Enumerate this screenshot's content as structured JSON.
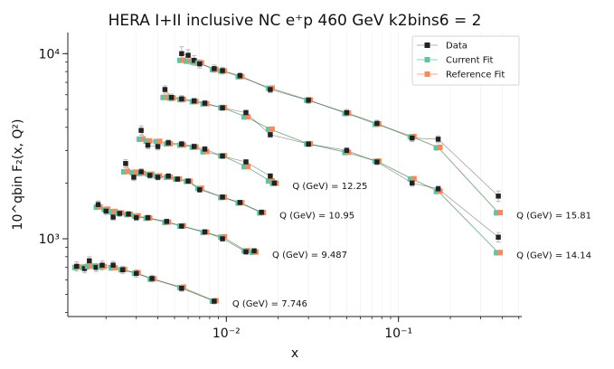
{
  "chart_data": {
    "type": "line",
    "title": "HERA I+II inclusive NC e⁺p 460 GeV k2bins6 = 2",
    "xlabel": "x",
    "ylabel": "10^qbin F₂(x, Q²)",
    "xscale": "log",
    "yscale": "log",
    "xlim": [
      0.0012,
      0.52
    ],
    "ylim": [
      380,
      13000
    ],
    "x_ticks": [
      {
        "value": 0.01,
        "label": "10⁻²"
      },
      {
        "value": 0.1,
        "label": "10⁻¹"
      }
    ],
    "y_ticks": [
      {
        "value": 1000,
        "label": "10³"
      },
      {
        "value": 10000,
        "label": "10⁴"
      }
    ],
    "grid": "vertical-minor-faint",
    "legend_position": "top-right",
    "legend": [
      "Data",
      "Current Fit",
      "Reference Fit"
    ],
    "colors": {
      "data": "#222222",
      "current": "#5fc4a4",
      "reference": "#f28b60"
    },
    "bins": [
      {
        "label": "Q (GeV) = 7.746",
        "points": [
          {
            "x": 0.00135,
            "data": 710,
            "err": 40,
            "current": 700,
            "reference": 705
          },
          {
            "x": 0.0015,
            "data": 690,
            "err": 35,
            "current": 700,
            "reference": 705
          },
          {
            "x": 0.0016,
            "data": 760,
            "err": 40,
            "current": 710,
            "reference": 712
          },
          {
            "x": 0.00175,
            "data": 700,
            "err": 35,
            "current": 710,
            "reference": 710
          },
          {
            "x": 0.0019,
            "data": 720,
            "err": 40,
            "current": 705,
            "reference": 708
          },
          {
            "x": 0.0022,
            "data": 720,
            "err": 35,
            "current": 695,
            "reference": 698
          },
          {
            "x": 0.0025,
            "data": 680,
            "err": 30,
            "current": 680,
            "reference": 682
          },
          {
            "x": 0.003,
            "data": 650,
            "err": 30,
            "current": 650,
            "reference": 655
          },
          {
            "x": 0.0037,
            "data": 610,
            "err": 25,
            "current": 605,
            "reference": 608
          },
          {
            "x": 0.0055,
            "data": 540,
            "err": 20,
            "current": 545,
            "reference": 548
          },
          {
            "x": 0.0085,
            "data": 460,
            "err": 15,
            "current": 460,
            "reference": 463
          }
        ]
      },
      {
        "label": "Q (GeV) = 9.487",
        "points": [
          {
            "x": 0.0018,
            "data": 1530,
            "err": 70,
            "current": 1480,
            "reference": 1485
          },
          {
            "x": 0.002,
            "data": 1410,
            "err": 60,
            "current": 1440,
            "reference": 1445
          },
          {
            "x": 0.0022,
            "data": 1310,
            "err": 50,
            "current": 1400,
            "reference": 1405
          },
          {
            "x": 0.0024,
            "data": 1370,
            "err": 50,
            "current": 1375,
            "reference": 1380
          },
          {
            "x": 0.0027,
            "data": 1360,
            "err": 45,
            "current": 1350,
            "reference": 1355
          },
          {
            "x": 0.003,
            "data": 1300,
            "err": 40,
            "current": 1325,
            "reference": 1330
          },
          {
            "x": 0.0035,
            "data": 1300,
            "err": 40,
            "current": 1290,
            "reference": 1295
          },
          {
            "x": 0.0045,
            "data": 1240,
            "err": 35,
            "current": 1225,
            "reference": 1230
          },
          {
            "x": 0.0055,
            "data": 1170,
            "err": 30,
            "current": 1170,
            "reference": 1175
          },
          {
            "x": 0.0075,
            "data": 1090,
            "err": 30,
            "current": 1080,
            "reference": 1085
          },
          {
            "x": 0.0095,
            "data": 1000,
            "err": 28,
            "current": 1020,
            "reference": 1025
          },
          {
            "x": 0.013,
            "data": 850,
            "err": 25,
            "current": 860,
            "reference": 862
          },
          {
            "x": 0.0145,
            "data": 860,
            "err": 25,
            "current": 845,
            "reference": 848
          }
        ]
      },
      {
        "label": "Q (GeV) = 10.95",
        "points": [
          {
            "x": 0.0026,
            "data": 2550,
            "err": 130,
            "current": 2300,
            "reference": 2310
          },
          {
            "x": 0.0029,
            "data": 2150,
            "err": 90,
            "current": 2280,
            "reference": 2290
          },
          {
            "x": 0.0032,
            "data": 2300,
            "err": 90,
            "current": 2250,
            "reference": 2260
          },
          {
            "x": 0.0036,
            "data": 2200,
            "err": 80,
            "current": 2230,
            "reference": 2235
          },
          {
            "x": 0.004,
            "data": 2150,
            "err": 70,
            "current": 2180,
            "reference": 2185
          },
          {
            "x": 0.0046,
            "data": 2180,
            "err": 70,
            "current": 2150,
            "reference": 2155
          },
          {
            "x": 0.0052,
            "data": 2100,
            "err": 60,
            "current": 2100,
            "reference": 2105
          },
          {
            "x": 0.006,
            "data": 2050,
            "err": 60,
            "current": 2040,
            "reference": 2045
          },
          {
            "x": 0.007,
            "data": 1840,
            "err": 55,
            "current": 1870,
            "reference": 1875
          },
          {
            "x": 0.0095,
            "data": 1680,
            "err": 50,
            "current": 1670,
            "reference": 1675
          },
          {
            "x": 0.012,
            "data": 1570,
            "err": 45,
            "current": 1560,
            "reference": 1565
          },
          {
            "x": 0.016,
            "data": 1390,
            "err": 40,
            "current": 1380,
            "reference": 1385
          }
        ]
      },
      {
        "label": "Q (GeV) = 12.25",
        "points": [
          {
            "x": 0.0032,
            "data": 3850,
            "err": 220,
            "current": 3450,
            "reference": 3460
          },
          {
            "x": 0.0035,
            "data": 3200,
            "err": 140,
            "current": 3370,
            "reference": 3380
          },
          {
            "x": 0.004,
            "data": 3150,
            "err": 130,
            "current": 3350,
            "reference": 3360
          },
          {
            "x": 0.0046,
            "data": 3300,
            "err": 120,
            "current": 3250,
            "reference": 3260
          },
          {
            "x": 0.0055,
            "data": 3250,
            "err": 110,
            "current": 3200,
            "reference": 3210
          },
          {
            "x": 0.0065,
            "data": 3150,
            "err": 100,
            "current": 3120,
            "reference": 3130
          },
          {
            "x": 0.0075,
            "data": 3050,
            "err": 100,
            "current": 2950,
            "reference": 2960
          },
          {
            "x": 0.0095,
            "data": 2800,
            "err": 90,
            "current": 2800,
            "reference": 2810
          },
          {
            "x": 0.013,
            "data": 2600,
            "err": 80,
            "current": 2450,
            "reference": 2455
          },
          {
            "x": 0.018,
            "data": 2180,
            "err": 70,
            "current": 2050,
            "reference": 2055
          },
          {
            "x": 0.019,
            "data": 2000,
            "err": 65,
            "current": 1990,
            "reference": 1995
          }
        ]
      },
      {
        "label": "Q (GeV) = 14.14",
        "points": [
          {
            "x": 0.0044,
            "data": 6400,
            "err": 300,
            "current": 5800,
            "reference": 5810
          },
          {
            "x": 0.0048,
            "data": 5800,
            "err": 250,
            "current": 5750,
            "reference": 5760
          },
          {
            "x": 0.0055,
            "data": 5700,
            "err": 230,
            "current": 5650,
            "reference": 5660
          },
          {
            "x": 0.0065,
            "data": 5550,
            "err": 200,
            "current": 5500,
            "reference": 5510
          },
          {
            "x": 0.0075,
            "data": 5400,
            "err": 180,
            "current": 5350,
            "reference": 5360
          },
          {
            "x": 0.0095,
            "data": 5100,
            "err": 170,
            "current": 5100,
            "reference": 5110
          },
          {
            "x": 0.013,
            "data": 4800,
            "err": 150,
            "current": 4550,
            "reference": 4560
          },
          {
            "x": 0.018,
            "data": 3650,
            "err": 120,
            "current": 3900,
            "reference": 3910
          },
          {
            "x": 0.03,
            "data": 3250,
            "err": 110,
            "current": 3250,
            "reference": 3260
          },
          {
            "x": 0.05,
            "data": 3000,
            "err": 100,
            "current": 2920,
            "reference": 2930
          },
          {
            "x": 0.075,
            "data": 2600,
            "err": 90,
            "current": 2620,
            "reference": 2630
          },
          {
            "x": 0.12,
            "data": 2000,
            "err": 80,
            "current": 2100,
            "reference": 2110
          },
          {
            "x": 0.17,
            "data": 1860,
            "err": 75,
            "current": 1800,
            "reference": 1810
          },
          {
            "x": 0.38,
            "data": 1020,
            "err": 60,
            "current": 840,
            "reference": 842
          }
        ]
      },
      {
        "label": "Q (GeV) = 15.81",
        "points": [
          {
            "x": 0.0055,
            "data": 10000,
            "err": 900,
            "current": 9200,
            "reference": 9220
          },
          {
            "x": 0.006,
            "data": 9800,
            "err": 700,
            "current": 9100,
            "reference": 9120
          },
          {
            "x": 0.0065,
            "data": 9200,
            "err": 550,
            "current": 9000,
            "reference": 9020
          },
          {
            "x": 0.007,
            "data": 8800,
            "err": 450,
            "current": 8900,
            "reference": 8920
          },
          {
            "x": 0.0085,
            "data": 8300,
            "err": 380,
            "current": 8200,
            "reference": 8220
          },
          {
            "x": 0.0095,
            "data": 8100,
            "err": 350,
            "current": 8050,
            "reference": 8070
          },
          {
            "x": 0.012,
            "data": 7600,
            "err": 300,
            "current": 7500,
            "reference": 7520
          },
          {
            "x": 0.018,
            "data": 6400,
            "err": 250,
            "current": 6500,
            "reference": 6520
          },
          {
            "x": 0.03,
            "data": 5600,
            "err": 220,
            "current": 5600,
            "reference": 5620
          },
          {
            "x": 0.05,
            "data": 4800,
            "err": 190,
            "current": 4750,
            "reference": 4770
          },
          {
            "x": 0.075,
            "data": 4200,
            "err": 170,
            "current": 4150,
            "reference": 4170
          },
          {
            "x": 0.12,
            "data": 3500,
            "err": 150,
            "current": 3550,
            "reference": 3570
          },
          {
            "x": 0.17,
            "data": 3450,
            "err": 150,
            "current": 3100,
            "reference": 3120
          },
          {
            "x": 0.38,
            "data": 1700,
            "err": 110,
            "current": 1380,
            "reference": 1385
          }
        ]
      }
    ]
  }
}
